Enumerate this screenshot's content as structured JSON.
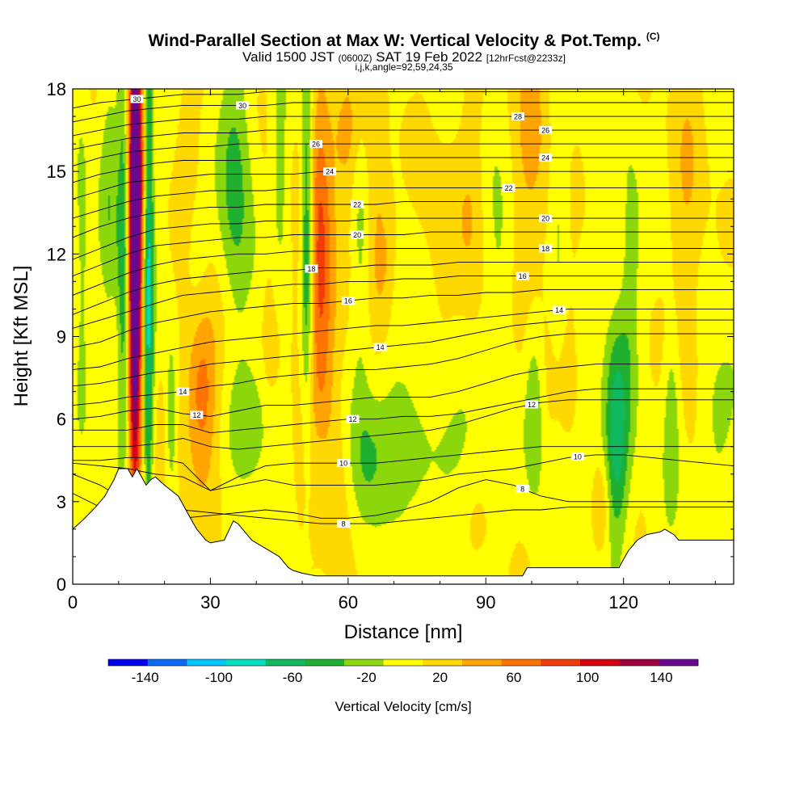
{
  "header": {
    "title": "Wind-Parallel Section at Max W: Vertical Velocity & Pot.Temp.",
    "title_unit": "(C)",
    "subtitle_main": "Valid 1500 JST",
    "subtitle_small1": "(0600Z)",
    "subtitle_date": "SAT 19 Feb 2022",
    "subtitle_small2": "[12hrFcst@2233z]",
    "subtitle2": "i,j,k,angle=92,59,24,35"
  },
  "chart_data": {
    "type": "heatmap",
    "xlabel": "Distance [nm]",
    "ylabel": "Height [Kft MSL]",
    "xlim": [
      0,
      144
    ],
    "ylim": [
      0,
      18
    ],
    "x_ticks": [
      "0",
      "30",
      "60",
      "90",
      "120"
    ],
    "y_ticks": [
      "0",
      "3",
      "6",
      "9",
      "12",
      "15",
      "18"
    ],
    "colorbar": {
      "label": "Vertical Velocity [cm/s]",
      "tick_labels": [
        "-140",
        "-100",
        "-60",
        "-20",
        "20",
        "60",
        "100",
        "140"
      ],
      "range": [
        -160,
        160
      ],
      "colors": [
        "#0000ee",
        "#0a6cf5",
        "#00c6ff",
        "#00e0c0",
        "#10b860",
        "#20b030",
        "#8cd60c",
        "#ffff00",
        "#ffd800",
        "#ffa400",
        "#ff7400",
        "#f23c0a",
        "#d70010",
        "#a00040",
        "#6c0890"
      ]
    },
    "terrain_profile": {
      "x": [
        0,
        2,
        5,
        7,
        8,
        9,
        10,
        12,
        13,
        14,
        16,
        17,
        18,
        20,
        23,
        25,
        26,
        27,
        28,
        29,
        30,
        33,
        35,
        36,
        37,
        38,
        39,
        41,
        43,
        45,
        46,
        47,
        48,
        50,
        53,
        56,
        57,
        98,
        99,
        100,
        119,
        120,
        121,
        122,
        123,
        125,
        128,
        129,
        131,
        132,
        133,
        144
      ],
      "y": [
        2.0,
        2.3,
        2.8,
        3.2,
        3.5,
        3.8,
        4.2,
        4.2,
        3.9,
        4.2,
        3.6,
        3.8,
        3.9,
        3.6,
        3.2,
        2.6,
        2.3,
        2.0,
        1.8,
        1.6,
        1.5,
        1.6,
        2.3,
        2.2,
        2.0,
        1.8,
        1.6,
        1.4,
        1.2,
        1.0,
        0.8,
        0.6,
        0.5,
        0.4,
        0.3,
        0.3,
        0.3,
        0.3,
        0.6,
        0.6,
        0.6,
        0.9,
        1.2,
        1.4,
        1.6,
        1.8,
        1.9,
        2.0,
        1.8,
        1.6,
        1.6,
        1.6
      ]
    },
    "updrafts": [
      {
        "x": 13.5,
        "y": 12.0,
        "sx": 0.9,
        "sy": 6.5,
        "w": 180
      },
      {
        "x": 14.5,
        "y": 14.0,
        "sx": 1.2,
        "sy": 4.5,
        "w": 60
      },
      {
        "x": 28.0,
        "y": 7.0,
        "sx": 2.2,
        "sy": 2.0,
        "w": 45
      },
      {
        "x": 28.5,
        "y": 8.2,
        "sx": 4.0,
        "sy": 3.5,
        "w": 22
      },
      {
        "x": 54.0,
        "y": 12.0,
        "sx": 1.6,
        "sy": 4.5,
        "w": 55
      },
      {
        "x": 54.5,
        "y": 9.0,
        "sx": 3.0,
        "sy": 5.0,
        "w": 25
      },
      {
        "x": 60.0,
        "y": 16.5,
        "sx": 3.0,
        "sy": 1.8,
        "w": 40
      },
      {
        "x": 57.0,
        "y": 3.0,
        "sx": 3.0,
        "sy": 2.5,
        "w": 20
      },
      {
        "x": 65.0,
        "y": 14.0,
        "sx": 2.0,
        "sy": 4.0,
        "w": 30
      },
      {
        "x": 68.0,
        "y": 12.0,
        "sx": 2.0,
        "sy": 2.0,
        "w": 35
      },
      {
        "x": 100.0,
        "y": 15.0,
        "sx": 3.0,
        "sy": 5.0,
        "w": 30
      },
      {
        "x": 115.0,
        "y": 2.8,
        "sx": 1.5,
        "sy": 1.3,
        "w": 40
      },
      {
        "x": 50.0,
        "y": 7.5,
        "sx": 2.0,
        "sy": 5.0,
        "w": 15
      },
      {
        "x": 87.0,
        "y": 14.0,
        "sx": 2.0,
        "sy": 3.5,
        "w": 20
      },
      {
        "x": 108.0,
        "y": 8.0,
        "sx": 2.0,
        "sy": 3.0,
        "w": 22
      },
      {
        "x": 134.0,
        "y": 13.0,
        "sx": 2.5,
        "sy": 5.0,
        "w": 25
      },
      {
        "x": 25.0,
        "y": 16.5,
        "sx": 2.0,
        "sy": 2.5,
        "w": 20
      },
      {
        "x": 80.0,
        "y": 13.0,
        "sx": 4.0,
        "sy": 3.0,
        "w": 15
      },
      {
        "x": 43.0,
        "y": 11.0,
        "sx": 1.5,
        "sy": 4.0,
        "w": 18
      },
      {
        "x": 16.0,
        "y": 2.0,
        "sx": 4.0,
        "sy": 2.0,
        "w": 15
      }
    ],
    "downdrafts": [
      {
        "x": 16.5,
        "y": 11.0,
        "sx": 0.8,
        "sy": 7.0,
        "w": -90
      },
      {
        "x": 11.0,
        "y": 11.5,
        "sx": 0.9,
        "sy": 5.0,
        "w": -55
      },
      {
        "x": 21.5,
        "y": 6.0,
        "sx": 0.8,
        "sy": 2.0,
        "w": -40
      },
      {
        "x": 35.5,
        "y": 14.0,
        "sx": 2.5,
        "sy": 4.0,
        "w": -45
      },
      {
        "x": 51.0,
        "y": 12.5,
        "sx": 0.9,
        "sy": 4.5,
        "w": -75
      },
      {
        "x": 63.0,
        "y": 14.0,
        "sx": 1.6,
        "sy": 4.0,
        "w": -40
      },
      {
        "x": 64.0,
        "y": 4.0,
        "sx": 3.0,
        "sy": 2.0,
        "w": -35
      },
      {
        "x": 54.0,
        "y": 4.0,
        "sx": 2.0,
        "sy": 1.8,
        "w": -35
      },
      {
        "x": 100.5,
        "y": 6.5,
        "sx": 1.5,
        "sy": 2.2,
        "w": -45
      },
      {
        "x": 118.5,
        "y": 5.5,
        "sx": 1.8,
        "sy": 3.0,
        "w": -65
      },
      {
        "x": 130.5,
        "y": 6.0,
        "sx": 1.2,
        "sy": 2.5,
        "w": -35
      },
      {
        "x": 121.5,
        "y": 11.0,
        "sx": 1.5,
        "sy": 3.5,
        "w": -28
      },
      {
        "x": 106.0,
        "y": 13.0,
        "sx": 1.5,
        "sy": 4.0,
        "w": -25
      },
      {
        "x": 8.0,
        "y": 14.0,
        "sx": 1.5,
        "sy": 4.0,
        "w": -28
      },
      {
        "x": 45.0,
        "y": 15.0,
        "sx": 1.5,
        "sy": 3.0,
        "w": -28
      },
      {
        "x": 40.0,
        "y": 6.0,
        "sx": 5.0,
        "sy": 1.5,
        "w": -25
      },
      {
        "x": 78.0,
        "y": 5.0,
        "sx": 8.0,
        "sy": 1.5,
        "w": -25
      },
      {
        "x": 112.0,
        "y": 4.0,
        "sx": 4.0,
        "sy": 2.0,
        "w": -22
      },
      {
        "x": 140.0,
        "y": 6.0,
        "sx": 3.0,
        "sy": 2.0,
        "w": -25
      },
      {
        "x": 2.0,
        "y": 12.0,
        "sx": 1.0,
        "sy": 4.0,
        "w": -25
      },
      {
        "x": 70.0,
        "y": 9.0,
        "sx": 3.0,
        "sy": 3.0,
        "w": -20
      },
      {
        "x": 93.0,
        "y": 11.0,
        "sx": 2.0,
        "sy": 3.0,
        "w": -22
      },
      {
        "x": 27.0,
        "y": 12.0,
        "sx": 2.0,
        "sy": 2.0,
        "w": -22
      }
    ],
    "isentropes": [
      {
        "value": 8,
        "label": "8",
        "y": [
          3.3,
          2.8,
          2.6,
          2.5,
          2.4,
          2.5,
          2.6,
          2.7,
          2.6,
          2.4,
          2.4,
          2.5,
          2.7,
          3.0,
          3.5,
          3.8,
          3.6,
          3.2,
          3.0,
          3.0,
          3.0,
          3.0,
          3.0,
          3.0,
          3.0
        ],
        "label_x": 98
      },
      {
        "value": 8,
        "label": "8",
        "y": [
          4.0,
          3.6,
          3.0,
          2.8,
          2.7,
          2.6,
          2.5,
          2.4,
          2.3,
          2.2,
          2.2,
          2.2,
          2.3,
          2.4,
          2.5,
          2.6,
          2.7,
          2.7,
          2.8,
          2.8,
          2.8,
          2.8,
          2.8,
          2.8,
          2.8
        ],
        "label_x": 59
      },
      {
        "value": 10,
        "label": "10",
        "y": [
          4.4,
          4.3,
          4.2,
          4.0,
          3.9,
          3.4,
          3.6,
          3.8,
          3.6,
          3.6,
          3.6,
          3.6,
          3.7,
          3.8,
          4.0,
          4.1,
          4.2,
          4.4,
          4.6,
          4.7,
          4.7,
          4.6,
          4.5,
          4.4,
          4.3
        ],
        "label_x": 110
      },
      {
        "value": 10,
        "label": "10",
        "y": [
          4.5,
          4.5,
          4.6,
          4.6,
          4.4,
          3.4,
          3.9,
          4.3,
          4.4,
          4.4,
          4.4,
          4.4,
          4.5,
          4.6,
          4.7,
          4.8,
          4.9,
          5.0,
          5.0,
          5.0,
          5.0,
          5.0,
          5.0,
          5.0,
          5.0
        ],
        "label_x": 59
      },
      {
        "value": 12,
        "label": "12",
        "y": [
          5.0,
          5.0,
          5.0,
          5.1,
          5.3,
          5.0,
          4.9,
          5.0,
          5.1,
          5.2,
          5.3,
          5.4,
          5.5,
          5.6,
          5.8,
          6.1,
          6.4,
          6.6,
          6.7,
          6.7,
          6.7,
          6.7,
          6.7,
          6.7,
          6.7
        ],
        "label_x": 100
      },
      {
        "value": 12,
        "label": "12",
        "y": [
          5.6,
          5.6,
          5.6,
          5.8,
          5.8,
          5.5,
          5.6,
          5.7,
          5.8,
          5.9,
          6.0,
          6.0,
          6.1,
          6.1,
          6.2,
          6.4,
          6.6,
          6.8,
          7.0,
          7.1,
          7.1,
          7.1,
          7.1,
          7.1,
          7.1
        ],
        "label_x": 61
      },
      {
        "value": 12,
        "label": "12",
        "y": [
          6.0,
          6.1,
          6.3,
          6.4,
          6.2,
          6.1,
          6.3,
          6.5,
          6.5,
          6.6,
          6.7,
          6.8,
          6.8,
          6.8,
          7.0,
          7.3,
          7.6,
          7.8,
          7.9,
          8.0,
          8.0,
          8.0,
          8.0,
          8.0,
          8.0
        ],
        "label_x": 27
      },
      {
        "value": 14,
        "label": "14",
        "y": [
          6.5,
          6.6,
          6.8,
          6.9,
          7.0,
          7.2,
          7.3,
          7.5,
          7.6,
          7.7,
          7.8,
          7.8,
          7.9,
          8.0,
          8.2,
          8.5,
          8.8,
          9.0,
          9.1,
          9.1,
          9.1,
          9.1,
          9.1,
          9.1,
          9.1
        ],
        "label_x": 24
      },
      {
        "value": 14,
        "label": "14",
        "y": [
          7.2,
          7.3,
          7.5,
          7.7,
          7.8,
          8.0,
          8.1,
          8.2,
          8.3,
          8.4,
          8.5,
          8.6,
          8.7,
          8.8,
          9.0,
          9.2,
          9.4,
          9.5,
          9.6,
          9.6,
          9.6,
          9.6,
          9.6,
          9.6,
          9.6
        ],
        "label_x": 67
      },
      {
        "value": 14,
        "label": "14",
        "y": [
          7.8,
          7.9,
          8.2,
          8.4,
          8.6,
          8.8,
          8.9,
          9.0,
          9.1,
          9.2,
          9.3,
          9.4,
          9.4,
          9.5,
          9.6,
          9.7,
          9.8,
          9.9,
          10.0,
          10.0,
          10.0,
          10.0,
          10.0,
          10.0,
          10.0
        ],
        "label_x": 106
      },
      {
        "value": 16,
        "label": "16",
        "y": [
          8.6,
          8.8,
          9.2,
          9.5,
          9.7,
          9.9,
          10.0,
          10.1,
          10.2,
          10.2,
          10.3,
          10.4,
          10.4,
          10.5,
          10.5,
          10.6,
          10.6,
          10.7,
          10.7,
          10.7,
          10.7,
          10.7,
          10.7,
          10.7,
          10.7
        ],
        "label_x": 60
      },
      {
        "value": 16,
        "label": "16",
        "y": [
          9.3,
          9.6,
          9.9,
          10.2,
          10.5,
          10.6,
          10.7,
          10.8,
          10.9,
          10.9,
          11.0,
          11.0,
          11.1,
          11.1,
          11.2,
          11.2,
          11.2,
          11.2,
          11.2,
          11.2,
          11.2,
          11.2,
          11.2,
          11.2,
          11.2
        ],
        "label_x": 98
      },
      {
        "value": 18,
        "label": "18",
        "y": [
          9.8,
          10.2,
          10.6,
          10.9,
          11.1,
          11.2,
          11.3,
          11.4,
          11.4,
          11.5,
          11.5,
          11.6,
          11.6,
          11.6,
          11.7,
          11.7,
          11.7,
          11.7,
          11.7,
          11.7,
          11.7,
          11.7,
          11.7,
          11.7,
          11.7
        ],
        "label_x": 52
      },
      {
        "value": 18,
        "label": "18",
        "y": [
          10.5,
          10.9,
          11.3,
          11.6,
          11.8,
          11.9,
          12.0,
          12.0,
          12.1,
          12.1,
          12.1,
          12.2,
          12.2,
          12.2,
          12.2,
          12.2,
          12.2,
          12.2,
          12.2,
          12.2,
          12.2,
          12.2,
          12.2,
          12.2,
          12.2
        ],
        "label_x": 103
      },
      {
        "value": 20,
        "label": "20",
        "y": [
          11.2,
          11.6,
          12.0,
          12.3,
          12.4,
          12.5,
          12.6,
          12.6,
          12.7,
          12.7,
          12.7,
          12.7,
          12.7,
          12.8,
          12.8,
          12.8,
          12.8,
          12.8,
          12.8,
          12.8,
          12.8,
          12.8,
          12.8,
          12.8,
          12.8
        ],
        "label_x": 62
      },
      {
        "value": 20,
        "label": "20",
        "y": [
          11.8,
          12.2,
          12.6,
          12.9,
          13.0,
          13.1,
          13.1,
          13.2,
          13.2,
          13.2,
          13.2,
          13.3,
          13.3,
          13.3,
          13.3,
          13.3,
          13.3,
          13.3,
          13.3,
          13.3,
          13.3,
          13.3,
          13.3,
          13.3,
          13.3
        ],
        "label_x": 103
      },
      {
        "value": 22,
        "label": "22",
        "y": [
          12.6,
          13.0,
          13.3,
          13.5,
          13.6,
          13.7,
          13.7,
          13.8,
          13.8,
          13.8,
          13.8,
          13.8,
          13.9,
          13.9,
          13.9,
          13.9,
          13.9,
          13.9,
          13.9,
          13.9,
          13.9,
          13.9,
          13.9,
          13.9,
          13.9
        ],
        "label_x": 62
      },
      {
        "value": 22,
        "label": "22",
        "y": [
          13.3,
          13.6,
          13.9,
          14.1,
          14.2,
          14.3,
          14.3,
          14.3,
          14.4,
          14.4,
          14.4,
          14.4,
          14.4,
          14.4,
          14.4,
          14.4,
          14.4,
          14.4,
          14.4,
          14.4,
          14.4,
          14.4,
          14.4,
          14.4,
          14.4
        ],
        "label_x": 95
      },
      {
        "value": 24,
        "label": "24",
        "y": [
          14.0,
          14.3,
          14.6,
          14.7,
          14.8,
          14.9,
          14.9,
          14.9,
          14.9,
          15.0,
          15.0,
          15.0,
          15.0,
          15.0,
          15.0,
          15.0,
          15.0,
          15.0,
          15.0,
          15.0,
          15.0,
          15.0,
          15.0,
          15.0,
          15.0
        ],
        "label_x": 56
      },
      {
        "value": 24,
        "label": "24",
        "y": [
          14.6,
          14.9,
          15.1,
          15.3,
          15.4,
          15.4,
          15.4,
          15.5,
          15.5,
          15.5,
          15.5,
          15.5,
          15.5,
          15.5,
          15.5,
          15.5,
          15.5,
          15.5,
          15.5,
          15.5,
          15.5,
          15.5,
          15.5,
          15.5,
          15.5
        ],
        "label_x": 103
      },
      {
        "value": 26,
        "label": "26",
        "y": [
          15.2,
          15.5,
          15.7,
          15.8,
          15.9,
          15.9,
          16.0,
          16.0,
          16.0,
          16.0,
          16.0,
          16.0,
          16.0,
          16.0,
          16.0,
          16.0,
          16.0,
          16.0,
          16.0,
          16.0,
          16.0,
          16.0,
          16.0,
          16.0,
          16.0
        ],
        "label_x": 53
      },
      {
        "value": 26,
        "label": "26",
        "y": [
          15.8,
          16.0,
          16.2,
          16.3,
          16.4,
          16.4,
          16.4,
          16.5,
          16.5,
          16.5,
          16.5,
          16.5,
          16.5,
          16.5,
          16.5,
          16.5,
          16.5,
          16.5,
          16.5,
          16.5,
          16.5,
          16.5,
          16.5,
          16.5,
          16.5
        ],
        "label_x": 103
      },
      {
        "value": 28,
        "label": "28",
        "y": [
          16.3,
          16.5,
          16.7,
          16.8,
          16.9,
          16.9,
          16.9,
          17.0,
          17.0,
          17.0,
          17.0,
          17.0,
          17.0,
          17.0,
          17.0,
          17.0,
          17.0,
          17.0,
          17.0,
          17.0,
          17.0,
          17.0,
          17.0,
          17.0,
          17.0
        ],
        "label_x": 97
      },
      {
        "value": 30,
        "label": "30",
        "y": [
          16.8,
          17.0,
          17.2,
          17.3,
          17.4,
          17.4,
          17.4,
          17.4,
          17.5,
          17.5,
          17.5,
          17.5,
          17.5,
          17.5,
          17.5,
          17.5,
          17.5,
          17.5,
          17.5,
          17.5,
          17.5,
          17.5,
          17.5,
          17.5,
          17.5
        ],
        "label_x": 37
      },
      {
        "value": 30,
        "label": "30",
        "y": [
          17.3,
          17.5,
          17.6,
          17.7,
          17.8,
          17.8,
          17.8,
          17.9,
          17.9,
          17.9,
          17.9,
          17.9,
          17.9,
          17.9,
          17.9,
          17.9,
          17.9,
          17.9,
          17.9,
          17.9,
          17.9,
          17.9,
          17.9,
          17.9,
          17.9
        ],
        "label_x": 14
      }
    ]
  }
}
